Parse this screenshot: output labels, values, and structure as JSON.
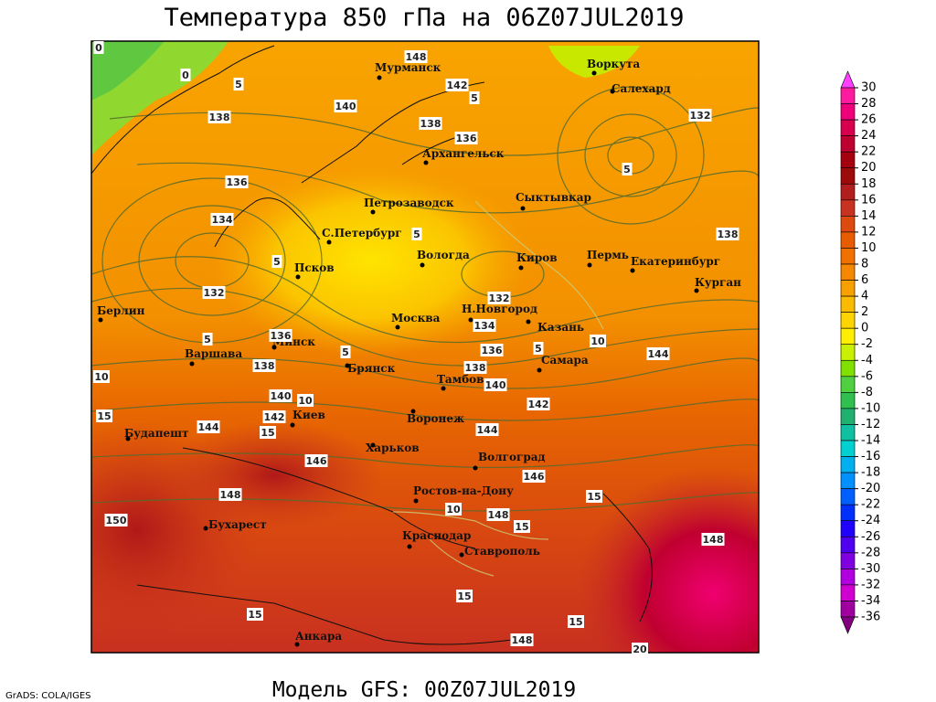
{
  "header": {
    "title": "Температура 850 гПа на 06Z07JUL2019"
  },
  "footer": {
    "model": "Модель GFS: 00Z07JUL2019",
    "credit": "GrADS: COLA/IGES"
  },
  "cities": [
    "Мурманск",
    "Архангельск",
    "Воркута",
    "Салехард",
    "Петрозаводск",
    "Сыктывкар",
    "С.Петербург",
    "Вологда",
    "Киров",
    "Пермь",
    "Екатеринбург",
    "Курган",
    "Псков",
    "Берлин",
    "Н.Новгород",
    "Москва",
    "Казань",
    "Минск",
    "Варшава",
    "Самара",
    "Брянск",
    "Тамбов",
    "Киев",
    "Воронеж",
    "Будапешт",
    "Харьков",
    "Волгоград",
    "Ростов-на-Дону",
    "Бухарест",
    "Краснодар",
    "Ставрополь",
    "Анкара"
  ],
  "contour_labels": [
    148,
    142,
    140,
    138,
    138,
    136,
    132,
    136,
    134,
    138,
    132,
    132,
    134,
    136,
    136,
    138,
    138,
    140,
    144,
    140,
    142,
    142,
    144,
    144,
    146,
    146,
    148,
    148,
    150,
    148,
    148,
    0,
    0,
    5,
    5,
    5,
    5,
    5,
    5,
    5,
    5,
    10,
    10,
    10,
    15,
    15,
    10,
    15,
    15,
    15,
    15,
    15,
    20
  ],
  "colorbar": {
    "ticks": [
      30,
      28,
      26,
      24,
      22,
      20,
      18,
      16,
      14,
      12,
      10,
      8,
      6,
      4,
      2,
      0,
      -2,
      -4,
      -6,
      -8,
      -10,
      -12,
      -14,
      -16,
      -18,
      -20,
      -22,
      -24,
      -26,
      -28,
      -30,
      -32,
      -34,
      -36
    ],
    "colors": [
      "#ff40ff",
      "#ff1aa0",
      "#f0007a",
      "#d6004f",
      "#be0030",
      "#a40010",
      "#9c0a0a",
      "#b01e1e",
      "#c83220",
      "#dc4a10",
      "#e85c00",
      "#f07000",
      "#f58800",
      "#f8a000",
      "#fbbb00",
      "#fed400",
      "#ffee00",
      "#c8f000",
      "#80e000",
      "#50d040",
      "#30c050",
      "#20b070",
      "#10c0a0",
      "#00d0d0",
      "#00b0f0",
      "#0090ff",
      "#0060ff",
      "#0030ff",
      "#2000ff",
      "#5000f0",
      "#8000e0",
      "#b000e0",
      "#d000d0",
      "#a000a0",
      "#800080"
    ]
  }
}
